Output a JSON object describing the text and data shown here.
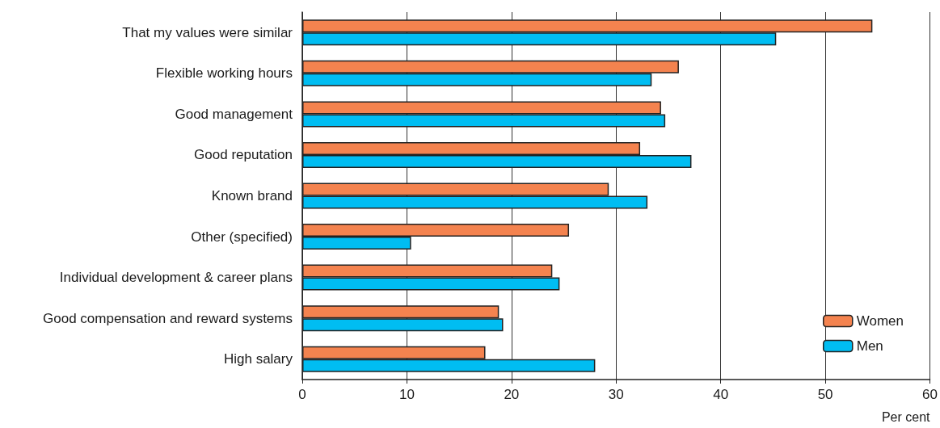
{
  "chart_data": {
    "type": "bar",
    "orientation": "horizontal",
    "xlabel": "Per cent",
    "categories": [
      "That my values were similar",
      "Flexible working hours",
      "Good management",
      "Good reputation",
      "Known brand",
      "Other (specified)",
      "Individual development & career plans",
      "Good compensation and reward systems",
      "High salary"
    ],
    "series": [
      {
        "name": "Women",
        "color": "#f4834f",
        "values": [
          54.5,
          36.0,
          34.3,
          32.3,
          29.3,
          25.5,
          23.9,
          18.8,
          17.5
        ]
      },
      {
        "name": "Men",
        "color": "#00bdf2",
        "values": [
          45.3,
          33.4,
          34.7,
          37.2,
          33.0,
          10.4,
          24.6,
          19.2,
          28.0
        ]
      }
    ],
    "xlim": [
      0,
      60
    ],
    "xticks": [
      0,
      10,
      20,
      30,
      40,
      50,
      60
    ],
    "grid": "x",
    "legend": "bottom right"
  }
}
